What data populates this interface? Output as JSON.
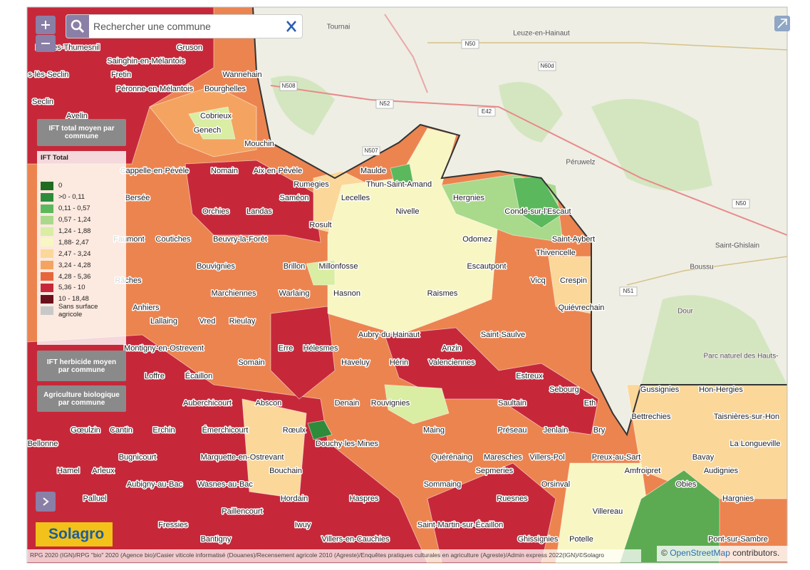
{
  "search": {
    "placeholder": "Rechercher une commune"
  },
  "layers": {
    "active": "IFT total moyen par commune",
    "others": [
      "IFT herbicide moyen par commune",
      "Agriculture biologique par commune"
    ]
  },
  "legend": {
    "title": "IFT Total",
    "items": [
      {
        "label": "0",
        "color": "#1f6b1f"
      },
      {
        "label": ">0 - 0,11",
        "color": "#2e8b3a"
      },
      {
        "label": "0,11 - 0,57",
        "color": "#5cb85c"
      },
      {
        "label": "0,57 - 1,24",
        "color": "#a9d98b"
      },
      {
        "label": "1,24 - 1,88",
        "color": "#d9eda3"
      },
      {
        "label": "1,88- 2,47",
        "color": "#f8f6c2"
      },
      {
        "label": "2,47 - 3,24",
        "color": "#fbd79a"
      },
      {
        "label": "3,24 - 4,28",
        "color": "#f4a460"
      },
      {
        "label": "4,28 - 5,36",
        "color": "#e8643c"
      },
      {
        "label": "5,36 - 10",
        "color": "#c6283a"
      },
      {
        "label": "10 - 18,48",
        "color": "#6b0f1a"
      },
      {
        "label": "Sans surface agricole",
        "color": "#c8c8c8"
      }
    ]
  },
  "communes": [
    "Faches-Thumesnil",
    "Gruson",
    "Sainghin-en-Mélantois",
    "s-lès-Seclin",
    "Fretin",
    "Wannehain",
    "Péronne-en-Mélantois",
    "Bourghelles",
    "Seclin",
    "Avelin",
    "Cobrieux",
    "Genech",
    "Mouchin",
    "Cappelle-en-Pévèle",
    "Nomain",
    "Aix-en-Pévèle",
    "Maulde",
    "Thun-Saint-Amand",
    "Rumegies",
    "Bersée",
    "Saméon",
    "Lecelles",
    "Hergnies",
    "Orchies",
    "Landas",
    "Nivelle",
    "Condé-sur-l'Escaut",
    "Rosult",
    "Faumont",
    "Coutiches",
    "Beuvry-la-Forêt",
    "Odomez",
    "Saint-Aybert",
    "Thivencelle",
    "Bouvignies",
    "Brillon",
    "Millonfosse",
    "Escautpont",
    "Râches",
    "Vicq",
    "Crespin",
    "Marchiennes",
    "Warlaing",
    "Hasnon",
    "Raismes",
    "Anhiers",
    "Quiévrechain",
    "Lallaing",
    "Vred",
    "Rieulay",
    "Aubry-du-Hainaut",
    "Saint-Saulve",
    "Montigny-en-Ostrevent",
    "Erre",
    "Hélesmes",
    "Anzin",
    "Somain",
    "Haveluy",
    "Hérin",
    "Valenciennes",
    "Loffre",
    "Écaillon",
    "Estreux",
    "Sebourg",
    "Gussignies",
    "Hon-Hergies",
    "Auberchicourt",
    "Abscon",
    "Denain",
    "Rouvignies",
    "Saultain",
    "Eth",
    "Bettrechies",
    "Taisnières-sur-Hon",
    "Gœulzin",
    "Cantin",
    "Erchin",
    "Émerchicourt",
    "Rœulx",
    "Maing",
    "Préseau",
    "Jenlain",
    "Bry",
    "Bellonne",
    "Douchy-les-Mines",
    "La Longueville",
    "Bugnicourt",
    "Marquette-en-Ostrevant",
    "Quérénaing",
    "Maresches",
    "Villers-Pol",
    "Preux-au-Sart",
    "Bavay",
    "Hamel",
    "Arleux",
    "Bouchain",
    "Sepmeries",
    "Amfroipret",
    "Audignies",
    "Aubigny-au-Bac",
    "Wasnes-au-Bac",
    "Sommaing",
    "Orsinval",
    "Obies",
    "Palluel",
    "Hordain",
    "Haspres",
    "Ruesnes",
    "Hargnies",
    "Paillencourt",
    "Villereau",
    "Fressies",
    "Iwuy",
    "Saint-Martin-sur-Écaillon",
    "Bantigny",
    "Villers-en-Cauchies",
    "Ghissignies",
    "Potelle",
    "Pont-sur-Sambre"
  ],
  "basemap_labels": [
    "Tournai",
    "Leuze-en-Hainaut",
    "Péruwelz",
    "Saint-Ghislain",
    "Boussu",
    "Dour",
    "Parc naturel des Hauts-",
    "N50",
    "N60d",
    "N508",
    "N52",
    "E42",
    "N507",
    "N50",
    "N51"
  ],
  "logo": "Solagro",
  "attribution": "RPG 2020 (IGN)/RPG \"bio\" 2020 (Agence bio)/Casier viticole informatisé (Douanes)/Recensement agricole 2010 (Agreste)/Enquêtes pratiques culturales en agriculture (Agreste)/Admin express 2022(IGN)/©Solagro",
  "osm_credit": {
    "prefix": "©",
    "link": "OpenStreetMap",
    "suffix": "contributors."
  }
}
